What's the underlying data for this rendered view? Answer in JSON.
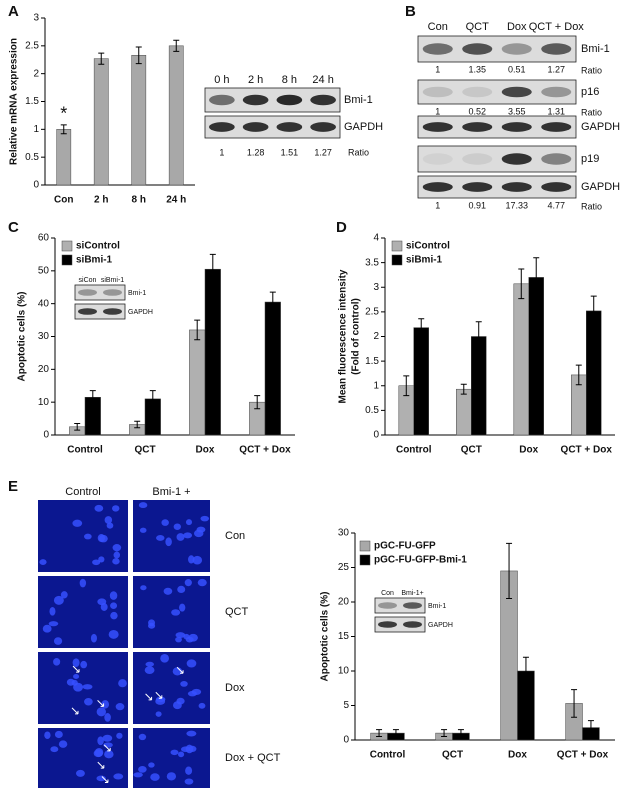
{
  "panel_labels": [
    "A",
    "B",
    "C",
    "D",
    "E"
  ],
  "chart_data": [
    {
      "type": "bar",
      "ylabel": [
        "Relative mRNA expression"
      ],
      "categories": [
        "Con",
        "2 h",
        "8 h",
        "24 h"
      ],
      "series": [
        {
          "color": "#a8a8a8",
          "values": [
            1.0,
            2.27,
            2.33,
            2.5
          ],
          "errors": [
            0.08,
            0.1,
            0.15,
            0.1
          ]
        }
      ],
      "ylim": [
        0,
        3
      ],
      "yticks": [
        0,
        0.5,
        1,
        1.5,
        2,
        2.5,
        3
      ],
      "annotation": "*"
    },
    {
      "type": "bar",
      "ylabel": [
        "Apoptotic cells (%)"
      ],
      "categories": [
        "Control",
        "QCT",
        "Dox",
        "QCT + Dox"
      ],
      "series": [
        {
          "name": "siControl",
          "color": "#b0b0b0",
          "values": [
            2.5,
            3.2,
            32,
            10
          ],
          "errors": [
            1,
            1,
            3,
            2
          ]
        },
        {
          "name": "siBmi-1",
          "color": "#000000",
          "values": [
            11.5,
            11,
            50.5,
            40.5
          ],
          "errors": [
            2,
            2.5,
            4.5,
            3
          ]
        }
      ],
      "ylim": [
        0,
        60
      ],
      "yticks": [
        0,
        10,
        20,
        30,
        40,
        50,
        60
      ],
      "legend": "upper left",
      "inset": {
        "lanes": [
          "siCon",
          "siBmi-1"
        ],
        "bands": [
          "Bmi-1",
          "GAPDH"
        ]
      }
    },
    {
      "type": "bar",
      "ylabel": [
        "Mean fluorescence intensity",
        "(Fold of control)"
      ],
      "categories": [
        "Control",
        "QCT",
        "Dox",
        "QCT + Dox"
      ],
      "series": [
        {
          "name": "siControl",
          "color": "#b0b0b0",
          "values": [
            1.0,
            0.93,
            3.07,
            1.22
          ],
          "errors": [
            0.2,
            0.1,
            0.3,
            0.2
          ]
        },
        {
          "name": "siBmi-1",
          "color": "#000000",
          "values": [
            2.18,
            2.0,
            3.2,
            2.52
          ],
          "errors": [
            0.18,
            0.3,
            0.4,
            0.3
          ]
        }
      ],
      "ylim": [
        0,
        4
      ],
      "yticks": [
        0,
        0.5,
        1,
        1.5,
        2,
        2.5,
        3,
        3.5,
        4
      ],
      "legend": "upper left"
    },
    {
      "type": "bar",
      "ylabel": [
        "Apoptotic cells (%)"
      ],
      "categories": [
        "Control",
        "QCT",
        "Dox",
        "QCT + Dox"
      ],
      "series": [
        {
          "name": "pGC-FU-GFP",
          "color": "#a8a8a8",
          "values": [
            1,
            1,
            24.5,
            5.3
          ],
          "errors": [
            0.5,
            0.5,
            4,
            2
          ]
        },
        {
          "name": "pGC-FU-GFP-Bmi-1",
          "color": "#000000",
          "values": [
            1,
            1,
            10,
            1.8
          ],
          "errors": [
            0.5,
            0.5,
            2,
            1
          ]
        }
      ],
      "ylim": [
        0,
        30
      ],
      "yticks": [
        0,
        5,
        10,
        15,
        20,
        25,
        30
      ],
      "legend": "upper left",
      "inset": {
        "lanes": [
          "Con",
          "Bmi-1+"
        ],
        "bands": [
          "Bmi-1",
          "GAPDH"
        ]
      }
    }
  ],
  "blot_a": {
    "lanes": [
      "0 h",
      "2 h",
      "8 h",
      "24 h"
    ],
    "bands": [
      "Bmi-1",
      "GAPDH"
    ],
    "ratios": [
      1,
      1.28,
      1.51,
      1.27
    ],
    "ratio_label": "Ratio"
  },
  "blot_b": {
    "lanes": [
      "Con",
      "QCT",
      "Dox",
      "QCT + Dox"
    ],
    "ratio_label": "Ratio",
    "rows": [
      {
        "label": "Bmi-1",
        "ratios": [
          1,
          1.35,
          0.51,
          1.27
        ]
      },
      {
        "label": "p16",
        "ratios": [
          1,
          0.52,
          3.55,
          1.31
        ]
      },
      {
        "label": "GAPDH"
      },
      {
        "label": "p19"
      },
      {
        "label": "GAPDH",
        "ratios": [
          1,
          0.91,
          17.33,
          4.77
        ]
      }
    ]
  },
  "images_e": {
    "columns": [
      "Control",
      "Bmi-1 +"
    ],
    "rows": [
      "Con",
      "QCT",
      "Dox",
      "Dox + QCT"
    ]
  }
}
